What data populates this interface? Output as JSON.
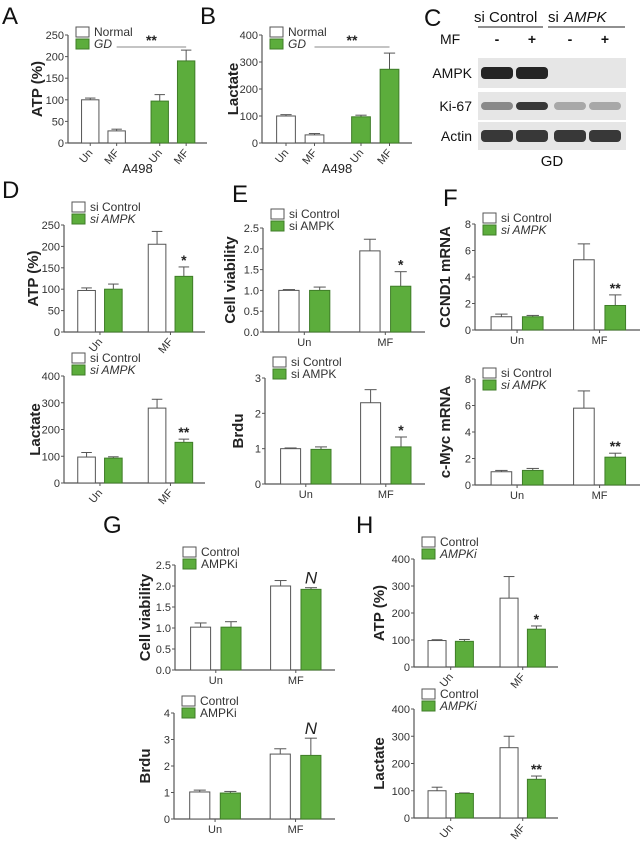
{
  "colors": {
    "green": "#5cad3c",
    "green_edge": "#3f7d28",
    "axis": "#555555",
    "bar_white": "#ffffff"
  },
  "panels": [
    "A",
    "B",
    "C",
    "D",
    "E",
    "F",
    "G",
    "H"
  ],
  "blot": {
    "headers": [
      "si Control",
      "si",
      "AMPK"
    ],
    "treatment_label": "MF",
    "treatment_signs": [
      "-",
      "+",
      "-",
      "+"
    ],
    "rows": [
      "AMPK",
      "Ki-67",
      "Actin"
    ],
    "condition": "GD"
  },
  "chart_data": [
    {
      "id": "A",
      "type": "bar",
      "ylabel": "ATP (%)",
      "xlabel": "A498",
      "ylim": [
        0,
        250
      ],
      "yticks": [
        "0",
        "50",
        "100",
        "150",
        "200",
        "250"
      ],
      "categories": [
        "Un",
        "MF"
      ],
      "series": [
        {
          "name": "Normal",
          "values": [
            100,
            28
          ],
          "errors": [
            4,
            4
          ]
        },
        {
          "name": "GD",
          "values": [
            97,
            190
          ],
          "errors": [
            15,
            25
          ]
        }
      ],
      "significance": [
        {
          "label": "**",
          "between": "Normal MF vs GD MF"
        }
      ]
    },
    {
      "id": "B",
      "type": "bar",
      "ylabel": "Lactate",
      "xlabel": "A498",
      "ylim": [
        0,
        400
      ],
      "yticks": [
        "0",
        "100",
        "200",
        "300",
        "400"
      ],
      "categories": [
        "Un",
        "MF"
      ],
      "series": [
        {
          "name": "Normal",
          "values": [
            100,
            30
          ],
          "errors": [
            5,
            5
          ]
        },
        {
          "name": "GD",
          "values": [
            97,
            273
          ],
          "errors": [
            6,
            60
          ]
        }
      ],
      "significance": [
        {
          "label": "**",
          "between": "Normal MF vs GD MF"
        }
      ]
    },
    {
      "id": "D1",
      "type": "bar",
      "ylabel": "ATP (%)",
      "ylim": [
        0,
        250
      ],
      "yticks": [
        "0",
        "50",
        "100",
        "150",
        "200",
        "250"
      ],
      "categories": [
        "Un",
        "MF"
      ],
      "series": [
        {
          "name": "si Control",
          "values": [
            97,
            205
          ],
          "errors": [
            6,
            30
          ]
        },
        {
          "name": "si AMPK",
          "values": [
            100,
            130
          ],
          "errors": [
            12,
            22
          ]
        }
      ],
      "significance": [
        {
          "label": "*",
          "category": "MF"
        }
      ]
    },
    {
      "id": "D2",
      "type": "bar",
      "ylabel": "Lactate",
      "ylim": [
        0,
        400
      ],
      "yticks": [
        "0",
        "100",
        "200",
        "300",
        "400"
      ],
      "categories": [
        "Un",
        "MF"
      ],
      "series": [
        {
          "name": "si Control",
          "values": [
            97,
            280
          ],
          "errors": [
            17,
            33
          ]
        },
        {
          "name": "si AMPK",
          "values": [
            93,
            152
          ],
          "errors": [
            5,
            12
          ]
        }
      ],
      "significance": [
        {
          "label": "**",
          "category": "MF"
        }
      ]
    },
    {
      "id": "E1",
      "type": "bar",
      "ylabel": "Cell viability",
      "ylim": [
        0,
        2.5
      ],
      "yticks": [
        "0.0",
        "0.5",
        "1.0",
        "1.5",
        "2.0",
        "2.5"
      ],
      "categories": [
        "Un",
        "MF"
      ],
      "series": [
        {
          "name": "si Control",
          "values": [
            1.0,
            1.95
          ],
          "errors": [
            0.02,
            0.28
          ]
        },
        {
          "name": "si AMPK",
          "values": [
            1.0,
            1.1
          ],
          "errors": [
            0.08,
            0.35
          ]
        }
      ],
      "significance": [
        {
          "label": "*",
          "category": "MF"
        }
      ]
    },
    {
      "id": "E2",
      "type": "bar",
      "ylabel": "Brdu",
      "ylim": [
        0,
        3
      ],
      "yticks": [
        "0",
        "1",
        "2",
        "3"
      ],
      "categories": [
        "Un",
        "MF"
      ],
      "series": [
        {
          "name": "si Control",
          "values": [
            1.0,
            2.3
          ],
          "errors": [
            0.02,
            0.37
          ]
        },
        {
          "name": "si AMPK",
          "values": [
            0.98,
            1.05
          ],
          "errors": [
            0.07,
            0.28
          ]
        }
      ],
      "significance": [
        {
          "label": "*",
          "category": "MF"
        }
      ]
    },
    {
      "id": "F1",
      "type": "bar",
      "ylabel": "CCND1 mRNA",
      "ylim": [
        0,
        8
      ],
      "yticks": [
        "0",
        "2",
        "4",
        "6",
        "8"
      ],
      "categories": [
        "Un",
        "MF"
      ],
      "series": [
        {
          "name": "si Control",
          "values": [
            1.0,
            5.3
          ],
          "errors": [
            0.2,
            1.2
          ]
        },
        {
          "name": "si AMPK",
          "values": [
            1.0,
            1.85
          ],
          "errors": [
            0.1,
            0.8
          ]
        }
      ],
      "significance": [
        {
          "label": "**",
          "category": "MF"
        }
      ]
    },
    {
      "id": "F2",
      "type": "bar",
      "ylabel": "c-Myc mRNA",
      "ylim": [
        0,
        8
      ],
      "yticks": [
        "0",
        "2",
        "4",
        "6",
        "8"
      ],
      "categories": [
        "Un",
        "MF"
      ],
      "series": [
        {
          "name": "si Control",
          "values": [
            1.0,
            5.8
          ],
          "errors": [
            0.1,
            1.3
          ]
        },
        {
          "name": "si AMPK",
          "values": [
            1.1,
            2.1
          ],
          "errors": [
            0.15,
            0.3
          ]
        }
      ],
      "significance": [
        {
          "label": "**",
          "category": "MF"
        }
      ]
    },
    {
      "id": "G1",
      "type": "bar",
      "ylabel": "Cell viability",
      "ylim": [
        0,
        2.5
      ],
      "yticks": [
        "0.0",
        "0.5",
        "1.0",
        "1.5",
        "2.0",
        "2.5"
      ],
      "categories": [
        "Un",
        "MF"
      ],
      "series": [
        {
          "name": "Control",
          "values": [
            1.02,
            2.0
          ],
          "errors": [
            0.1,
            0.13
          ]
        },
        {
          "name": "AMPKi",
          "values": [
            1.02,
            1.92
          ],
          "errors": [
            0.13,
            0.04
          ]
        }
      ],
      "significance": [
        {
          "label": "N",
          "category": "MF"
        }
      ]
    },
    {
      "id": "G2",
      "type": "bar",
      "ylabel": "Brdu",
      "ylim": [
        0,
        4
      ],
      "yticks": [
        "0",
        "1",
        "2",
        "3",
        "4"
      ],
      "categories": [
        "Un",
        "MF"
      ],
      "series": [
        {
          "name": "Control",
          "values": [
            1.02,
            2.45
          ],
          "errors": [
            0.07,
            0.2
          ]
        },
        {
          "name": "AMPKi",
          "values": [
            0.98,
            2.4
          ],
          "errors": [
            0.06,
            0.65
          ]
        }
      ],
      "significance": [
        {
          "label": "N",
          "category": "MF"
        }
      ]
    },
    {
      "id": "H1",
      "type": "bar",
      "ylabel": "ATP (%)",
      "ylim": [
        0,
        400
      ],
      "yticks": [
        "0",
        "100",
        "200",
        "300",
        "400"
      ],
      "categories": [
        "Un",
        "MF"
      ],
      "series": [
        {
          "name": "Control",
          "values": [
            98,
            255
          ],
          "errors": [
            3,
            80
          ]
        },
        {
          "name": "AMPKi",
          "values": [
            95,
            140
          ],
          "errors": [
            7,
            12
          ]
        }
      ],
      "significance": [
        {
          "label": "*",
          "category": "MF"
        }
      ]
    },
    {
      "id": "H2",
      "type": "bar",
      "ylabel": "Lactate",
      "ylim": [
        0,
        400
      ],
      "yticks": [
        "0",
        "100",
        "200",
        "300",
        "400"
      ],
      "categories": [
        "Un",
        "MF"
      ],
      "series": [
        {
          "name": "Control",
          "values": [
            100,
            258
          ],
          "errors": [
            13,
            42
          ]
        },
        {
          "name": "AMPKi",
          "values": [
            90,
            142
          ],
          "errors": [
            2,
            12
          ]
        }
      ],
      "significance": [
        {
          "label": "**",
          "category": "MF"
        }
      ]
    }
  ]
}
